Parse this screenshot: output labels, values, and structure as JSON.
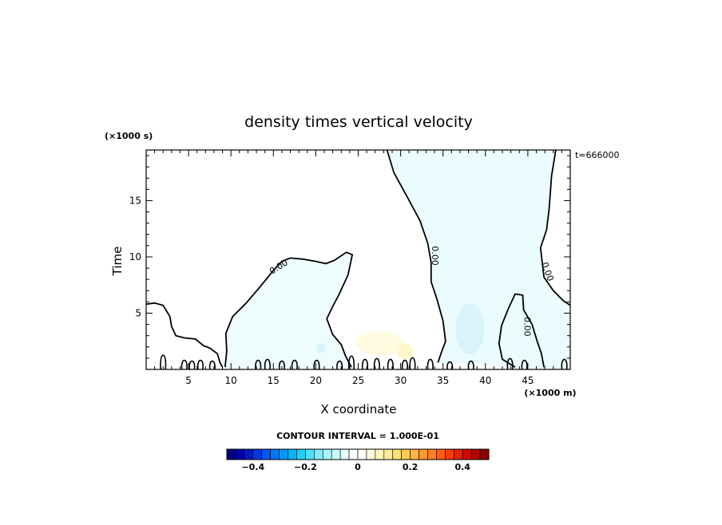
{
  "chart_data": {
    "type": "heatmap",
    "title": "density times vertical velocity",
    "xlabel": "X coordinate",
    "ylabel": "Time",
    "x_unit": "(×1000 m)",
    "y_unit": "(×1000 s)",
    "annotation": "t=666000",
    "xlim": [
      0,
      50
    ],
    "ylim": [
      0,
      19.5
    ],
    "x_ticks": [
      5,
      10,
      15,
      20,
      25,
      30,
      35,
      40,
      45
    ],
    "y_ticks": [
      5,
      10,
      15
    ],
    "contour_interval_label": "CONTOUR INTERVAL = 1.000E-01",
    "contour_labels": [
      "0.00",
      "0.00",
      "0.00",
      "0.00"
    ],
    "colorbar": {
      "range": [
        -0.5,
        0.5
      ],
      "tick_labels": [
        "−0.4",
        "−0.2",
        "0",
        "0.2",
        "0.4"
      ],
      "tick_values": [
        -0.4,
        -0.2,
        0,
        0.2,
        0.4
      ],
      "colors": [
        "#000080",
        "#0000a8",
        "#0018c8",
        "#0038e0",
        "#0058f0",
        "#0078f8",
        "#0098f8",
        "#00b4f8",
        "#20cef8",
        "#50e0f8",
        "#80ecf8",
        "#a8f4fa",
        "#c8fafc",
        "#e4fcfc",
        "#f8ffff",
        "#fffff4",
        "#fffad8",
        "#fff4b8",
        "#ffec98",
        "#ffe078",
        "#ffcc58",
        "#ffb440",
        "#ff9830",
        "#ff7c20",
        "#ff5c10",
        "#f83c08",
        "#e82000",
        "#d00800",
        "#b00000",
        "#900000"
      ]
    },
    "fields": {
      "contour_levels": [
        -0.1,
        0.0,
        0.1
      ],
      "zero_contours": [
        {
          "name": "left-blob",
          "points": [
            [
              0,
              5.8
            ],
            [
              1,
              5.9
            ],
            [
              2,
              5.7
            ],
            [
              2.8,
              4.7
            ],
            [
              3,
              3.8
            ],
            [
              3.5,
              3
            ],
            [
              4.5,
              2.8
            ],
            [
              5.8,
              2.7
            ],
            [
              6.8,
              2.1
            ],
            [
              7.5,
              1.9
            ],
            [
              8.4,
              1.4
            ],
            [
              8.7,
              0.6
            ],
            [
              9,
              0.2
            ]
          ]
        },
        {
          "name": "left-lobe",
          "points": [
            [
              9.3,
              0.2
            ],
            [
              9.5,
              1.6
            ],
            [
              9.4,
              3.2
            ],
            [
              10.2,
              4.7
            ],
            [
              11.8,
              5.9
            ],
            [
              13.5,
              7.4
            ],
            [
              15,
              8.8
            ],
            [
              16,
              9.6
            ],
            [
              17,
              9.9
            ],
            [
              18.5,
              9.8
            ],
            [
              20,
              9.6
            ],
            [
              21.2,
              9.4
            ],
            [
              22.2,
              9.7
            ],
            [
              23.6,
              10.4
            ],
            [
              24.3,
              10.2
            ],
            [
              23.8,
              8.4
            ],
            [
              22.7,
              6.6
            ],
            [
              22,
              5.6
            ],
            [
              21.3,
              4.5
            ],
            [
              22,
              3.1
            ],
            [
              23,
              2.2
            ],
            [
              23.5,
              1.2
            ],
            [
              24.2,
              0.2
            ]
          ]
        },
        {
          "name": "middle-stripe",
          "points": [
            [
              28.4,
              19.5
            ],
            [
              29.2,
              17.5
            ],
            [
              30.8,
              15.3
            ],
            [
              32.3,
              13.2
            ],
            [
              33.2,
              11.2
            ],
            [
              33.6,
              9.5
            ],
            [
              33.6,
              7.8
            ],
            [
              34.3,
              6.2
            ],
            [
              35,
              4.3
            ],
            [
              35.3,
              2.5
            ],
            [
              34.8,
              1.5
            ],
            [
              34.4,
              0.6
            ]
          ]
        },
        {
          "name": "right-stripe",
          "points": [
            [
              48.3,
              19.5
            ],
            [
              47.8,
              17.2
            ],
            [
              47.5,
              14.2
            ],
            [
              47.2,
              12.4
            ],
            [
              46.5,
              10.8
            ],
            [
              46.9,
              8.2
            ],
            [
              48,
              7
            ],
            [
              49.2,
              6.1
            ],
            [
              50,
              5.7
            ]
          ]
        },
        {
          "name": "right-loop",
          "points": [
            [
              43.5,
              0.2
            ],
            [
              42,
              0.9
            ],
            [
              41.6,
              2.3
            ],
            [
              41.9,
              3.9
            ],
            [
              42.7,
              5.4
            ],
            [
              43.5,
              6.7
            ],
            [
              44.4,
              6.6
            ],
            [
              44.5,
              5.3
            ],
            [
              45.5,
              4
            ],
            [
              46.1,
              2.5
            ],
            [
              46.6,
              1.4
            ],
            [
              46.9,
              0.2
            ]
          ]
        }
      ],
      "small_loops": [
        [
          2.0,
          1.4
        ],
        [
          4.5,
          0.8
        ],
        [
          5.4,
          0.7
        ],
        [
          6.4,
          0.8
        ],
        [
          7.8,
          0.7
        ],
        [
          13.2,
          0.8
        ],
        [
          14.3,
          0.9
        ],
        [
          16,
          0.7
        ],
        [
          17.5,
          0.8
        ],
        [
          20.1,
          0.8
        ],
        [
          22.8,
          0.7
        ],
        [
          24.2,
          1.3
        ],
        [
          25.8,
          0.9
        ],
        [
          27.2,
          1.0
        ],
        [
          28.8,
          0.9
        ],
        [
          30.5,
          0.8
        ],
        [
          31.4,
          1.1
        ],
        [
          33.5,
          0.9
        ],
        [
          35.8,
          0.6
        ],
        [
          38.3,
          0.7
        ],
        [
          42.9,
          1.0
        ],
        [
          44.6,
          0.8
        ],
        [
          49.3,
          0.9
        ]
      ]
    }
  }
}
